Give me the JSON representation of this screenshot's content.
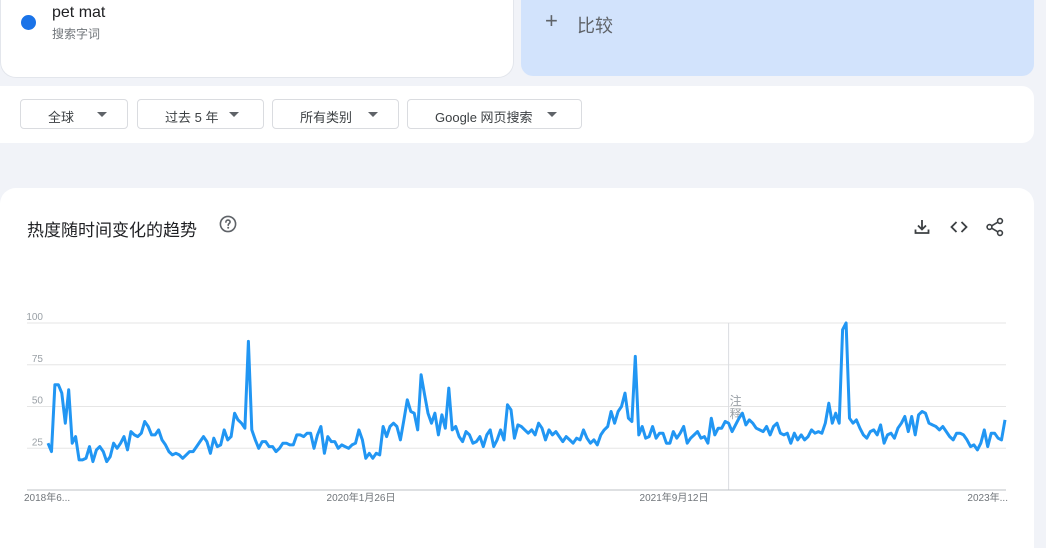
{
  "term": {
    "name": "pet mat",
    "type": "搜索字词",
    "color": "#1a73e8"
  },
  "compare": {
    "plus": "+",
    "label": "比较"
  },
  "filters": [
    {
      "label": "全球"
    },
    {
      "label": "过去 5 年"
    },
    {
      "label": "所有类别"
    },
    {
      "label": "Google 网页搜索"
    }
  ],
  "panel": {
    "title": "热度随时间变化的趋势",
    "icons": [
      "help-icon",
      "download-icon",
      "embed-icon",
      "share-icon"
    ]
  },
  "chart_data": {
    "type": "line",
    "x_tick_labels": [
      "2018年6...",
      "2020年1月26日",
      "2021年9月12日",
      "2023年..."
    ],
    "y_ticks": [
      25,
      50,
      75,
      100
    ],
    "ylim": [
      0,
      100
    ],
    "grid": true,
    "annotation": "注释",
    "series": [
      {
        "color": "#2196f3",
        "values": [
          28,
          23,
          63,
          63,
          58,
          40,
          60,
          28,
          32,
          18,
          18,
          19,
          26,
          17,
          24,
          26,
          23,
          17,
          20,
          28,
          25,
          28,
          32,
          24,
          35,
          33,
          32,
          34,
          41,
          38,
          33,
          33,
          36,
          30,
          27,
          23,
          21,
          22,
          21,
          19,
          21,
          23,
          23,
          26,
          29,
          32,
          29,
          22,
          31,
          26,
          27,
          36,
          30,
          32,
          46,
          42,
          40,
          37,
          89,
          36,
          30,
          25,
          29,
          29,
          26,
          26,
          23,
          25,
          28,
          28,
          27,
          27,
          33,
          33,
          32,
          34,
          34,
          25,
          33,
          38,
          22,
          32,
          29,
          29,
          25,
          27,
          26,
          25,
          27,
          28,
          36,
          30,
          19,
          22,
          19,
          22,
          21,
          38,
          32,
          38,
          40,
          38,
          30,
          42,
          54,
          47,
          46,
          36,
          69,
          57,
          46,
          40,
          46,
          33,
          45,
          37,
          61,
          36,
          38,
          32,
          29,
          35,
          33,
          28,
          29,
          32,
          26,
          33,
          36,
          26,
          30,
          36,
          30,
          51,
          48,
          31,
          39,
          38,
          36,
          34,
          36,
          33,
          40,
          37,
          30,
          36,
          33,
          35,
          32,
          29,
          32,
          30,
          28,
          31,
          30,
          36,
          31,
          28,
          30,
          27,
          33,
          36,
          38,
          47,
          40,
          47,
          50,
          58,
          43,
          41,
          80,
          33,
          38,
          31,
          32,
          38,
          31,
          34,
          34,
          28,
          28,
          35,
          31,
          34,
          38,
          28,
          31,
          33,
          35,
          31,
          32,
          28,
          43,
          33,
          37,
          37,
          41,
          40,
          35,
          39,
          43,
          46,
          39,
          42,
          40,
          37,
          36,
          35,
          38,
          33,
          38,
          40,
          34,
          33,
          34,
          28,
          34,
          30,
          33,
          30,
          32,
          36,
          34,
          35,
          34,
          40,
          52,
          40,
          46,
          40,
          96,
          100,
          43,
          40,
          42,
          37,
          33,
          31,
          35,
          36,
          33,
          39,
          28,
          33,
          34,
          31,
          37,
          40,
          44,
          35,
          44,
          33,
          45,
          47,
          46,
          40,
          39,
          38,
          36,
          38,
          35,
          32,
          30,
          34,
          34,
          33,
          30,
          26,
          27,
          24,
          28,
          36,
          26,
          34,
          34,
          31,
          30,
          42
        ]
      }
    ]
  }
}
